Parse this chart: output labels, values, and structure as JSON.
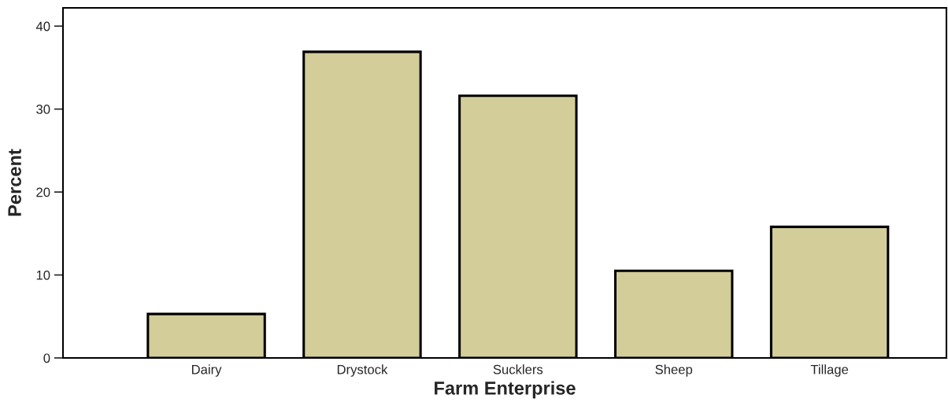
{
  "chart_data": {
    "type": "bar",
    "xlabel": "Farm Enterprise",
    "ylabel": "Percent",
    "categories": [
      "Dairy",
      "Drystock",
      "Sucklers",
      "Sheep",
      "Tillage"
    ],
    "values": [
      5.3,
      36.9,
      31.6,
      10.5,
      15.8
    ],
    "color": "#d3cd99",
    "ylim": [
      0,
      42.2
    ],
    "yticks": [
      0,
      10,
      20,
      30,
      40
    ],
    "grid": false
  }
}
